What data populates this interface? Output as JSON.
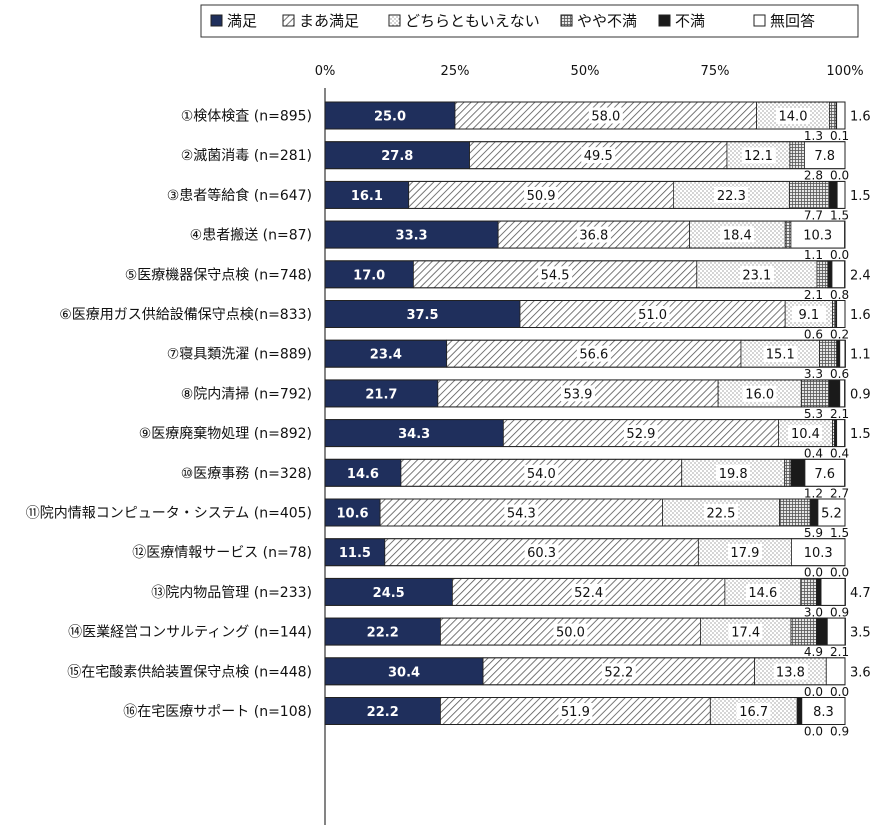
{
  "chart_data": {
    "type": "bar",
    "orientation": "horizontal",
    "stacked": true,
    "percent_stacked": true,
    "title": "",
    "xlabel": "",
    "ylabel": "",
    "xlim": [
      0,
      100
    ],
    "x_ticks": [
      "0%",
      "25%",
      "50%",
      "75%",
      "100%"
    ],
    "legend_position": "top",
    "grid": false,
    "categories": [
      "①検体検査 (n=895)",
      "②滅菌消毒 (n=281)",
      "③患者等給食 (n=647)",
      "④患者搬送 (n=87)",
      "⑤医療機器保守点検 (n=748)",
      "⑥医療用ガス供給設備保守点検(n=833)",
      "⑦寝具類洗濯 (n=889)",
      "⑧院内清掃 (n=792)",
      "⑨医療廃棄物処理 (n=892)",
      "⑩医療事務 (n=328)",
      "⑪院内情報コンピュータ・システム (n=405)",
      "⑫医療情報サービス (n=78)",
      "⑬院内物品管理 (n=233)",
      "⑭医業経営コンサルティング (n=144)",
      "⑮在宅酸素供給装置保守点検 (n=448)",
      "⑯在宅医療サポート (n=108)"
    ],
    "series": [
      {
        "name": "満足",
        "values": [
          25.0,
          27.8,
          16.1,
          33.3,
          17.0,
          37.5,
          23.4,
          21.7,
          34.3,
          14.6,
          10.6,
          11.5,
          24.5,
          22.2,
          30.4,
          22.2
        ]
      },
      {
        "name": "まあ満足",
        "values": [
          58.0,
          49.5,
          50.9,
          36.8,
          54.5,
          51.0,
          56.6,
          53.9,
          52.9,
          54.0,
          54.3,
          60.3,
          52.4,
          50.0,
          52.2,
          51.9
        ]
      },
      {
        "name": "どちらともいえない",
        "values": [
          14.0,
          12.1,
          22.3,
          18.4,
          23.1,
          9.1,
          15.1,
          16.0,
          10.4,
          19.8,
          22.5,
          17.9,
          14.6,
          17.4,
          13.8,
          16.7
        ]
      },
      {
        "name": "やや不満",
        "values": [
          1.3,
          2.8,
          7.7,
          1.1,
          2.1,
          0.6,
          3.3,
          5.3,
          0.4,
          1.2,
          5.9,
          0.0,
          3.0,
          4.9,
          0.0,
          0.0
        ]
      },
      {
        "name": "不満",
        "values": [
          0.1,
          0.0,
          1.5,
          0.0,
          0.8,
          0.2,
          0.6,
          2.1,
          0.4,
          2.7,
          1.5,
          0.0,
          0.9,
          2.1,
          0.0,
          0.9
        ]
      },
      {
        "name": "無回答",
        "values": [
          1.6,
          7.8,
          1.5,
          10.3,
          2.4,
          1.6,
          1.1,
          0.9,
          1.5,
          7.6,
          5.2,
          10.3,
          4.7,
          3.5,
          3.6,
          8.3
        ]
      }
    ],
    "series_colors": [
      "#1f2f5c",
      "#bfbfbf",
      "#ffffff",
      "#a6a6a6",
      "#1a1a1a",
      "#ffffff"
    ]
  }
}
